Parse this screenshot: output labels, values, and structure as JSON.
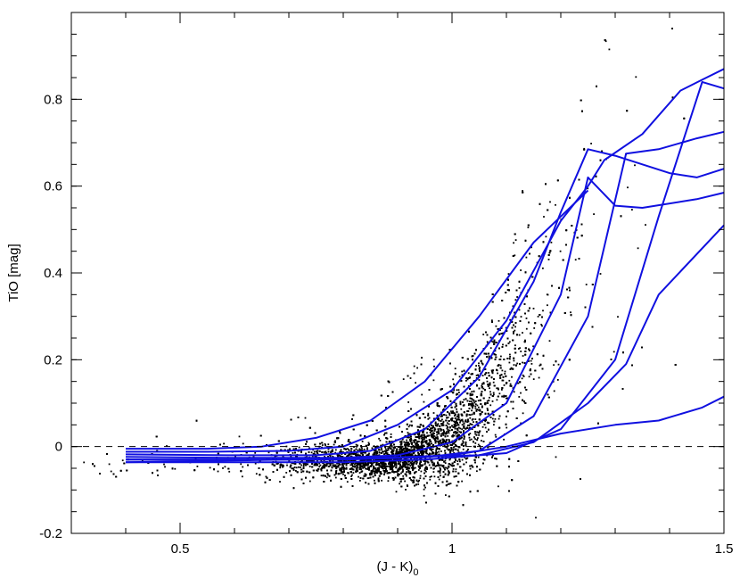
{
  "chart_data": {
    "type": "scatter",
    "title": "",
    "xlabel_main": "(J - K)",
    "xlabel_sub": "0",
    "ylabel": "TiO [mag]",
    "xlim": [
      0.3,
      1.5
    ],
    "ylim": [
      -0.2,
      1.0
    ],
    "x_ticks": [
      0.5,
      1.0,
      1.5
    ],
    "x_tick_labels": [
      "0.5",
      "1",
      "1.5"
    ],
    "y_ticks": [
      -0.2,
      0.0,
      0.2,
      0.4,
      0.6,
      0.8
    ],
    "y_tick_labels": [
      "-0.2",
      "0",
      "0.2",
      "0.4",
      "0.6",
      "0.8"
    ],
    "grid": false,
    "reference_line": {
      "y": 0,
      "style": "dashed",
      "color": "#000000"
    },
    "scatter": {
      "color": "#000000",
      "description_count": 9000,
      "x_range": [
        0.31,
        1.45
      ],
      "core_x": 0.9,
      "core_y": -0.03
    },
    "series_color": "#1010e0",
    "series": [
      {
        "points": [
          [
            0.4,
            -0.005
          ],
          [
            0.55,
            -0.005
          ],
          [
            0.65,
            0.0
          ],
          [
            0.75,
            0.02
          ],
          [
            0.85,
            0.06
          ],
          [
            0.95,
            0.15
          ],
          [
            1.05,
            0.3
          ],
          [
            1.15,
            0.47
          ],
          [
            1.25,
            0.59
          ]
        ]
      },
      {
        "points": [
          [
            0.4,
            -0.012
          ],
          [
            0.55,
            -0.012
          ],
          [
            0.7,
            -0.01
          ],
          [
            0.8,
            0.0
          ],
          [
            0.9,
            0.05
          ],
          [
            1.0,
            0.13
          ],
          [
            1.1,
            0.29
          ],
          [
            1.2,
            0.52
          ],
          [
            1.25,
            0.6
          ]
        ]
      },
      {
        "points": [
          [
            0.4,
            -0.018
          ],
          [
            0.6,
            -0.02
          ],
          [
            0.75,
            -0.02
          ],
          [
            0.85,
            -0.01
          ],
          [
            0.95,
            0.04
          ],
          [
            1.05,
            0.16
          ],
          [
            1.15,
            0.38
          ],
          [
            1.2,
            0.54
          ],
          [
            1.25,
            0.685
          ],
          [
            1.3,
            0.67
          ],
          [
            1.4,
            0.63
          ],
          [
            1.45,
            0.62
          ],
          [
            1.5,
            0.64
          ]
        ]
      },
      {
        "points": [
          [
            0.4,
            -0.024
          ],
          [
            0.6,
            -0.026
          ],
          [
            0.8,
            -0.026
          ],
          [
            0.9,
            -0.02
          ],
          [
            1.0,
            0.01
          ],
          [
            1.1,
            0.1
          ],
          [
            1.2,
            0.35
          ],
          [
            1.25,
            0.62
          ],
          [
            1.3,
            0.555
          ],
          [
            1.35,
            0.55
          ],
          [
            1.45,
            0.57
          ],
          [
            1.5,
            0.585
          ]
        ]
      },
      {
        "points": [
          [
            0.4,
            -0.03
          ],
          [
            0.6,
            -0.03
          ],
          [
            0.8,
            -0.03
          ],
          [
            0.95,
            -0.025
          ],
          [
            1.05,
            -0.01
          ],
          [
            1.15,
            0.07
          ],
          [
            1.25,
            0.3
          ],
          [
            1.32,
            0.675
          ],
          [
            1.38,
            0.685
          ],
          [
            1.45,
            0.71
          ],
          [
            1.5,
            0.725
          ]
        ]
      },
      {
        "points": [
          [
            0.4,
            -0.036
          ],
          [
            0.6,
            -0.036
          ],
          [
            0.8,
            -0.036
          ],
          [
            0.95,
            -0.03
          ],
          [
            1.1,
            -0.015
          ],
          [
            1.2,
            0.04
          ],
          [
            1.3,
            0.2
          ],
          [
            1.38,
            0.53
          ],
          [
            1.46,
            0.84
          ],
          [
            1.5,
            0.825
          ]
        ]
      },
      {
        "points": [
          [
            0.4,
            -0.036
          ],
          [
            0.7,
            -0.03
          ],
          [
            0.9,
            -0.025
          ],
          [
            1.05,
            -0.02
          ],
          [
            1.15,
            0.01
          ],
          [
            1.25,
            0.1
          ],
          [
            1.32,
            0.19
          ],
          [
            1.38,
            0.35
          ],
          [
            1.5,
            0.51
          ]
        ]
      },
      {
        "points": [
          [
            0.4,
            -0.03
          ],
          [
            0.6,
            -0.03
          ],
          [
            0.8,
            -0.03
          ],
          [
            1.0,
            -0.02
          ],
          [
            1.1,
            0.0
          ],
          [
            1.2,
            0.03
          ],
          [
            1.3,
            0.05
          ],
          [
            1.38,
            0.06
          ],
          [
            1.46,
            0.09
          ],
          [
            1.5,
            0.115
          ]
        ]
      },
      {
        "points": [
          [
            1.25,
            0.6
          ],
          [
            1.28,
            0.66
          ],
          [
            1.35,
            0.72
          ],
          [
            1.42,
            0.82
          ],
          [
            1.46,
            0.845
          ],
          [
            1.5,
            0.87
          ]
        ]
      }
    ]
  }
}
